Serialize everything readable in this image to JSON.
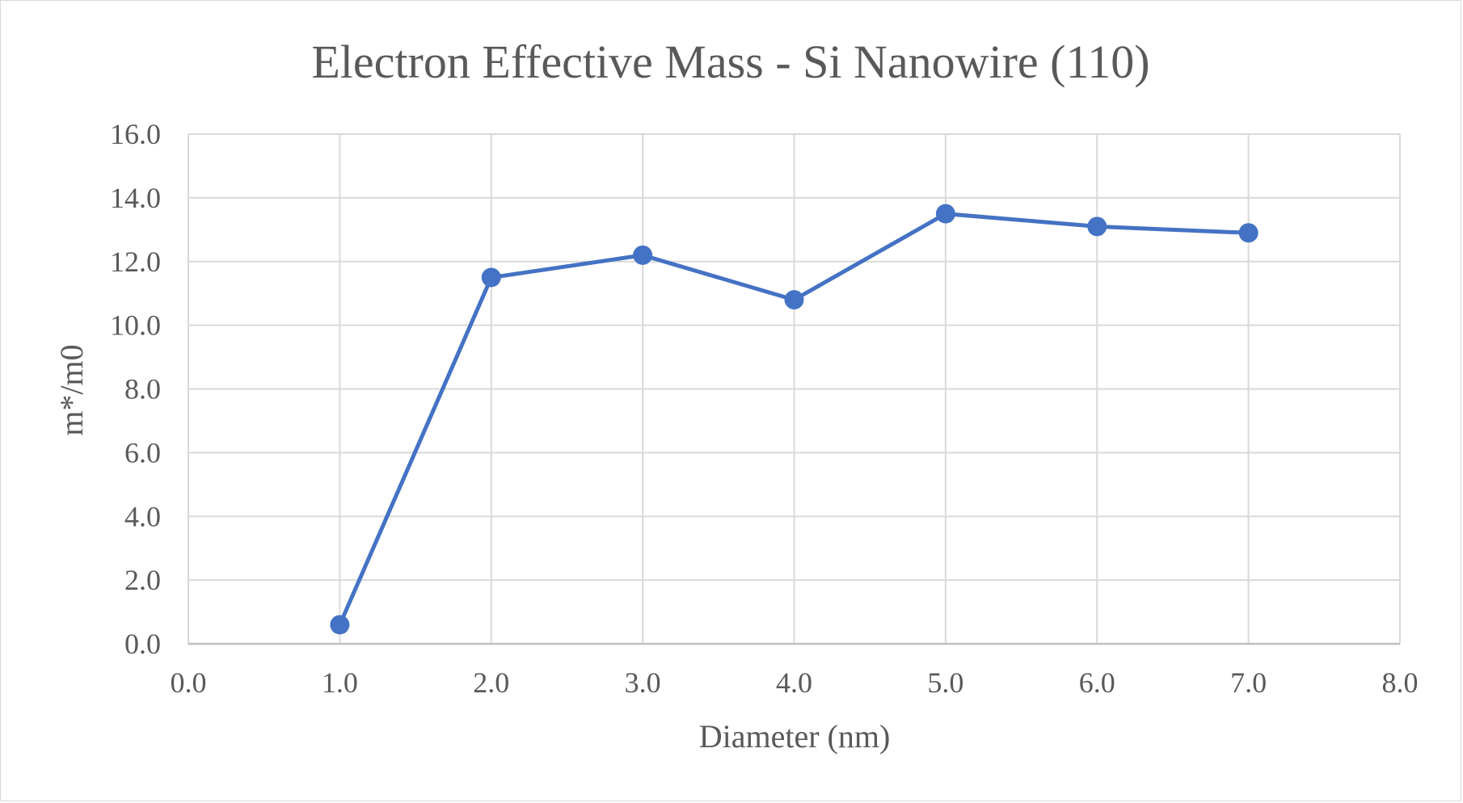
{
  "chart_data": {
    "type": "scatter",
    "title": "Electron Effective Mass - Si Nanowire (110)",
    "xlabel": "Diameter (nm)",
    "ylabel": "m*/m0",
    "xlim": [
      0,
      8
    ],
    "ylim": [
      0,
      16
    ],
    "x_ticks": [
      "0.0",
      "1.0",
      "2.0",
      "3.0",
      "4.0",
      "5.0",
      "6.0",
      "7.0",
      "8.0"
    ],
    "y_ticks": [
      "0.0",
      "2.0",
      "4.0",
      "6.0",
      "8.0",
      "10.0",
      "12.0",
      "14.0",
      "16.0"
    ],
    "grid": true,
    "legend": "none",
    "series": [
      {
        "color": "#4472c4",
        "marker": "circle",
        "line": "straight",
        "x": [
          1,
          2,
          3,
          4,
          5,
          6,
          7
        ],
        "y": [
          0.6,
          11.5,
          12.2,
          10.8,
          13.5,
          13.1,
          12.9
        ]
      }
    ],
    "colors": {
      "grid": "#d9d9d9",
      "text": "#595959",
      "axis": "#bfbfbf"
    }
  }
}
